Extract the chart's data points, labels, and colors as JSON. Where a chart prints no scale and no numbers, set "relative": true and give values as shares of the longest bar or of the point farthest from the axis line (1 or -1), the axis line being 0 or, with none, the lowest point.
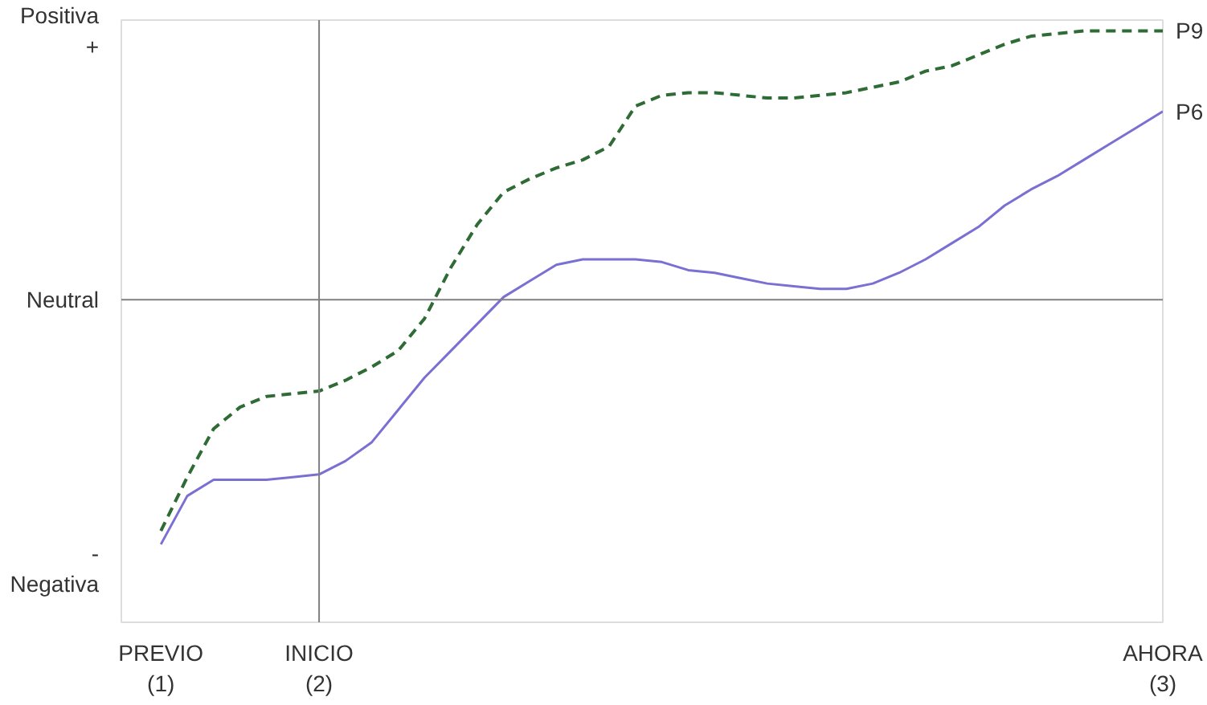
{
  "chart_data": {
    "type": "line",
    "relative": true,
    "categories": [
      "PREVIO\n(1)",
      null,
      null,
      null,
      null,
      null,
      "INICIO\n(2)",
      null,
      null,
      null,
      null,
      null,
      null,
      null,
      null,
      null,
      null,
      null,
      null,
      null,
      null,
      null,
      null,
      null,
      null,
      null,
      null,
      null,
      null,
      null,
      null,
      null,
      null,
      null,
      null,
      null,
      null,
      null,
      "AHORA\n(3)"
    ],
    "series": [
      {
        "name": "P9",
        "color": "#2e6b35",
        "line_style": "dashed",
        "values": [
          -0.86,
          -0.66,
          -0.48,
          -0.4,
          -0.36,
          -0.35,
          -0.34,
          -0.3,
          -0.25,
          -0.19,
          -0.07,
          0.12,
          0.28,
          0.4,
          0.45,
          0.49,
          0.52,
          0.57,
          0.72,
          0.76,
          0.77,
          0.77,
          0.76,
          0.75,
          0.75,
          0.76,
          0.77,
          0.79,
          0.81,
          0.85,
          0.87,
          0.91,
          0.95,
          0.98,
          0.99,
          1,
          1,
          1,
          1
        ]
      },
      {
        "name": "P6",
        "color": "#7a6fd2",
        "line_style": "solid",
        "values": [
          -0.91,
          -0.73,
          -0.67,
          -0.67,
          -0.67,
          -0.66,
          -0.65,
          -0.6,
          -0.53,
          -0.41,
          -0.29,
          -0.19,
          -0.09,
          0.01,
          0.07,
          0.13,
          0.15,
          0.15,
          0.15,
          0.14,
          0.11,
          0.1,
          0.08,
          0.06,
          0.05,
          0.04,
          0.04,
          0.06,
          0.1,
          0.15,
          0.21,
          0.27,
          0.35,
          0.41,
          0.46,
          0.52,
          0.58,
          0.64,
          0.7
        ]
      }
    ],
    "annotations": [
      "Positiva\n+",
      "Neutral",
      "-\nNegativa"
    ],
    "ref_lines": [
      {
        "axis": "y",
        "value": 0,
        "color": "#808080"
      },
      {
        "axis": "x",
        "value": "INICIO\n(2)",
        "color": "#808080"
      }
    ]
  }
}
